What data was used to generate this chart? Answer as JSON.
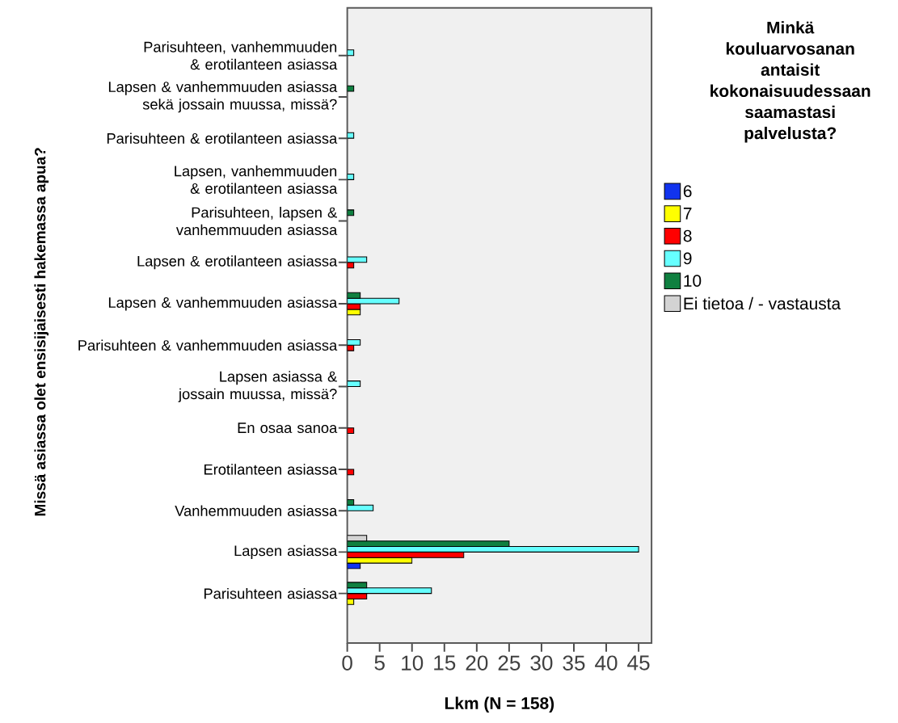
{
  "chart_data": {
    "type": "bar",
    "orientation": "horizontal",
    "xlabel": "Lkm (N = 158)",
    "ylabel": "Missä asiassa olet ensisijaisesti hakemassa apua?",
    "legend_title": "Minkä kouluarvosanan antaisit kokonaisuudessaan saamastasi palvelusta?",
    "categories": [
      "Parisuhteen, vanhemmuuden & erotilanteen asiassa",
      "Lapsen & vanhemmuuden asiassa sekä jossain muussa, missä?",
      "Parisuhteen & erotilanteen asiassa",
      "Lapsen, vanhemmuuden & erotilanteen asiassa",
      "Parisuhteen, lapsen & vanhemmuuden asiassa",
      "Lapsen & erotilanteen asiassa",
      "Lapsen & vanhemmuuden asiassa",
      "Parisuhteen & vanhemmuuden asiassa",
      "Lapsen asiassa & jossain muussa, missä?",
      "En osaa sanoa",
      "Erotilanteen asiassa",
      "Vanhemmuuden asiassa",
      "Lapsen asiassa",
      "Parisuhteen asiassa"
    ],
    "series": [
      {
        "name": "6",
        "color": "#1133ee",
        "values": [
          0,
          0,
          0,
          0,
          0,
          0,
          0,
          0,
          0,
          0,
          0,
          0,
          2,
          0
        ]
      },
      {
        "name": "7",
        "color": "#ffff00",
        "values": [
          0,
          0,
          0,
          0,
          0,
          0,
          2,
          0,
          0,
          0,
          0,
          0,
          10,
          1
        ]
      },
      {
        "name": "8",
        "color": "#ff0000",
        "values": [
          0,
          0,
          0,
          0,
          0,
          1,
          2,
          1,
          0,
          1,
          1,
          0,
          18,
          3
        ]
      },
      {
        "name": "9",
        "color": "#66ffff",
        "values": [
          1,
          0,
          1,
          1,
          0,
          3,
          8,
          2,
          2,
          0,
          0,
          4,
          45,
          13
        ]
      },
      {
        "name": "10",
        "color": "#0f8040",
        "values": [
          0,
          1,
          0,
          0,
          1,
          0,
          2,
          0,
          0,
          0,
          0,
          1,
          25,
          3
        ]
      },
      {
        "name": "Ei tietoa / - vastausta",
        "color": "#d3d3d3",
        "values": [
          0,
          0,
          0,
          0,
          0,
          0,
          0,
          0,
          0,
          0,
          0,
          0,
          3,
          0
        ]
      }
    ],
    "xlim": [
      0,
      47
    ],
    "xticks": [
      0,
      5,
      10,
      15,
      20,
      25,
      30,
      35,
      40,
      45
    ],
    "grid": false,
    "legend": "right"
  }
}
